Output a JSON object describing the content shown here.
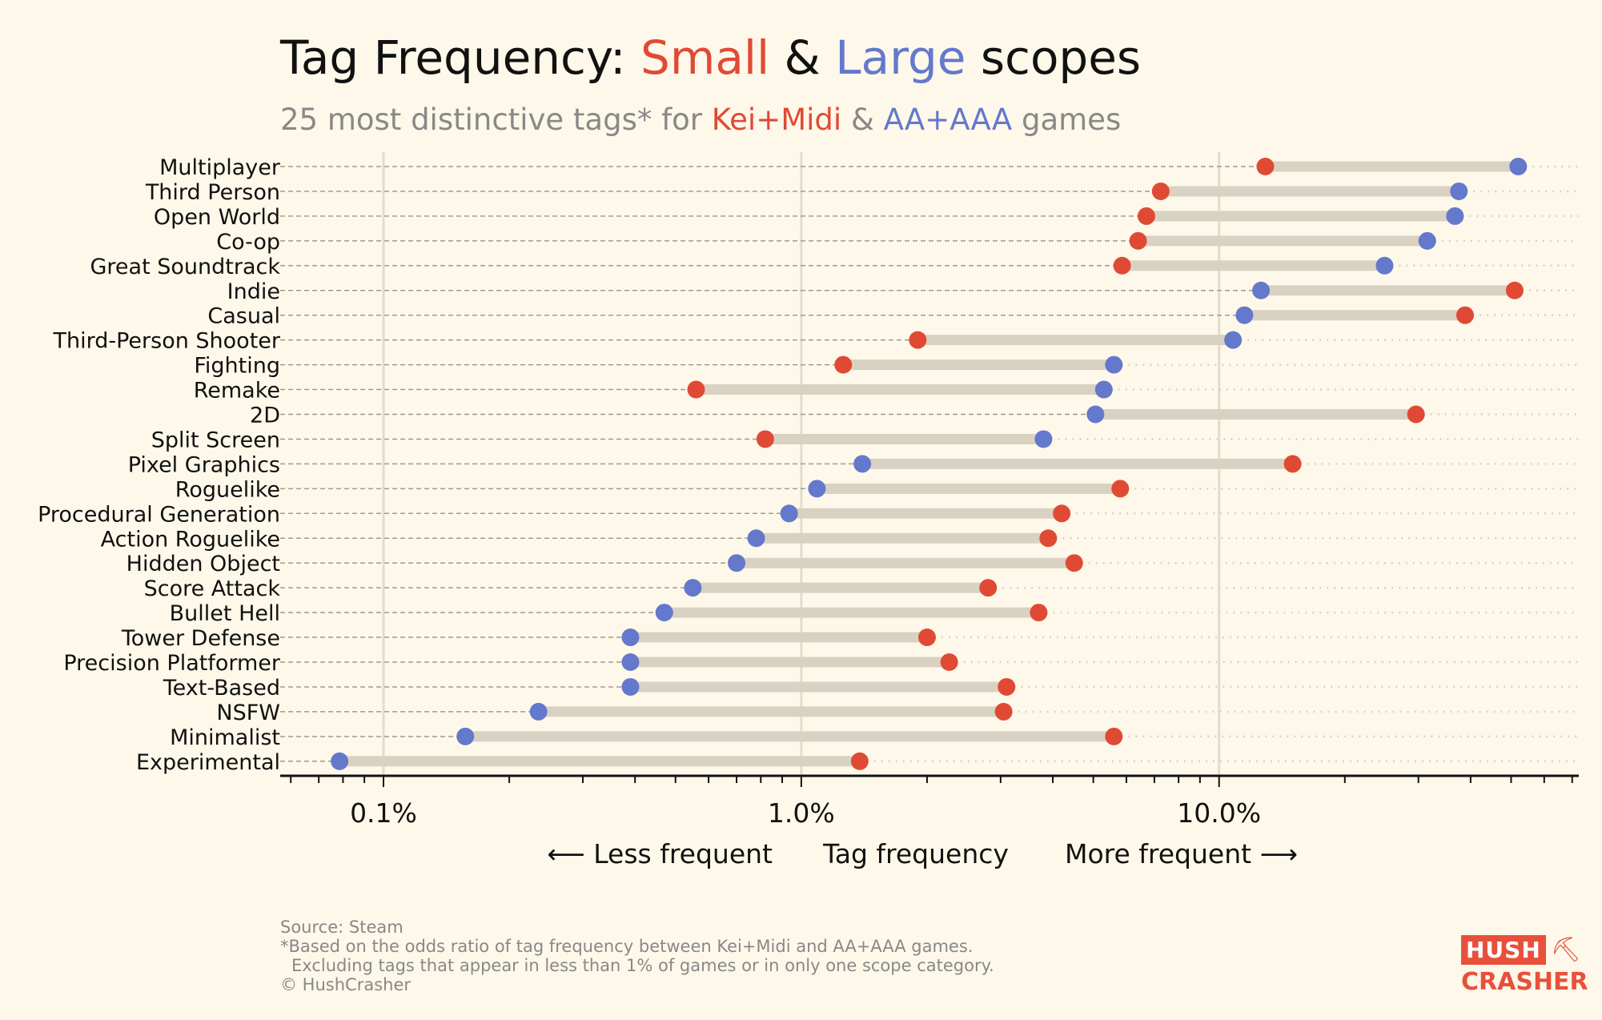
{
  "title": {
    "prefix": "Tag Frequency: ",
    "small": "Small",
    "amp": " & ",
    "large": "Large",
    "suffix": " scopes"
  },
  "subtitle": {
    "prefix": "25 most distinctive tags* for ",
    "small": "Kei+Midi",
    "amp": " & ",
    "large": "AA+AAA",
    "suffix": " games"
  },
  "colors": {
    "small": "#e04a35",
    "large": "#6478cc",
    "background": "#fdf8e9",
    "bar": "#d9d2c2"
  },
  "chart_data": {
    "type": "dumbbell",
    "xscale": "log",
    "xlim": [
      0.0566,
      72.6
    ],
    "xticks": [
      {
        "value": 0.1,
        "label": "0.1%"
      },
      {
        "value": 1,
        "label": "1.0%"
      },
      {
        "value": 10,
        "label": "10.0%"
      }
    ],
    "xlabel": "Tag frequency",
    "xlabel_left": "⟵  Less frequent",
    "xlabel_right": "More frequent  ⟶",
    "series": [
      {
        "name": "Kei+Midi",
        "color": "#e04a35"
      },
      {
        "name": "AA+AAA",
        "color": "#6478cc"
      }
    ],
    "rows": [
      {
        "tag": "Multiplayer",
        "small": 12.9,
        "large": 52
      },
      {
        "tag": "Third Person",
        "small": 7.25,
        "large": 37.5
      },
      {
        "tag": "Open World",
        "small": 6.7,
        "large": 36.7
      },
      {
        "tag": "Co-op",
        "small": 6.4,
        "large": 31.5
      },
      {
        "tag": "Great Soundtrack",
        "small": 5.86,
        "large": 24.9
      },
      {
        "tag": "Indie",
        "small": 51,
        "large": 12.6
      },
      {
        "tag": "Casual",
        "small": 38.8,
        "large": 11.5
      },
      {
        "tag": "Third-Person Shooter",
        "small": 1.9,
        "large": 10.8
      },
      {
        "tag": "Fighting",
        "small": 1.26,
        "large": 5.6
      },
      {
        "tag": "Remake",
        "small": 0.56,
        "large": 5.3
      },
      {
        "tag": "2D",
        "small": 29.6,
        "large": 5.06
      },
      {
        "tag": "Split Screen",
        "small": 0.82,
        "large": 3.8
      },
      {
        "tag": "Pixel Graphics",
        "small": 15.0,
        "large": 1.4
      },
      {
        "tag": "Roguelike",
        "small": 5.8,
        "large": 1.09
      },
      {
        "tag": "Procedural Generation",
        "small": 4.2,
        "large": 0.935
      },
      {
        "tag": "Action Roguelike",
        "small": 3.9,
        "large": 0.78
      },
      {
        "tag": "Hidden Object",
        "small": 4.5,
        "large": 0.7
      },
      {
        "tag": "Score Attack",
        "small": 2.8,
        "large": 0.55
      },
      {
        "tag": "Bullet Hell",
        "small": 3.7,
        "large": 0.47
      },
      {
        "tag": "Tower Defense",
        "small": 2.0,
        "large": 0.39
      },
      {
        "tag": "Precision Platformer",
        "small": 2.26,
        "large": 0.39
      },
      {
        "tag": "Text-Based",
        "small": 3.1,
        "large": 0.39
      },
      {
        "tag": "NSFW",
        "small": 3.05,
        "large": 0.235
      },
      {
        "tag": "Minimalist",
        "small": 5.6,
        "large": 0.157
      },
      {
        "tag": "Experimental",
        "small": 1.38,
        "large": 0.0785
      }
    ]
  },
  "footer": {
    "source": "Source: Steam",
    "note1": "*Based on the odds ratio of tag frequency between Kei+Midi and AA+AAA games.",
    "note2": "Excluding tags that appear in less than 1% of games or in only one scope category.",
    "copyright": "© HushCrasher"
  },
  "logo": {
    "line1": "HUSH",
    "line2": "CRASHER",
    "icon": "pickaxe-icon"
  }
}
